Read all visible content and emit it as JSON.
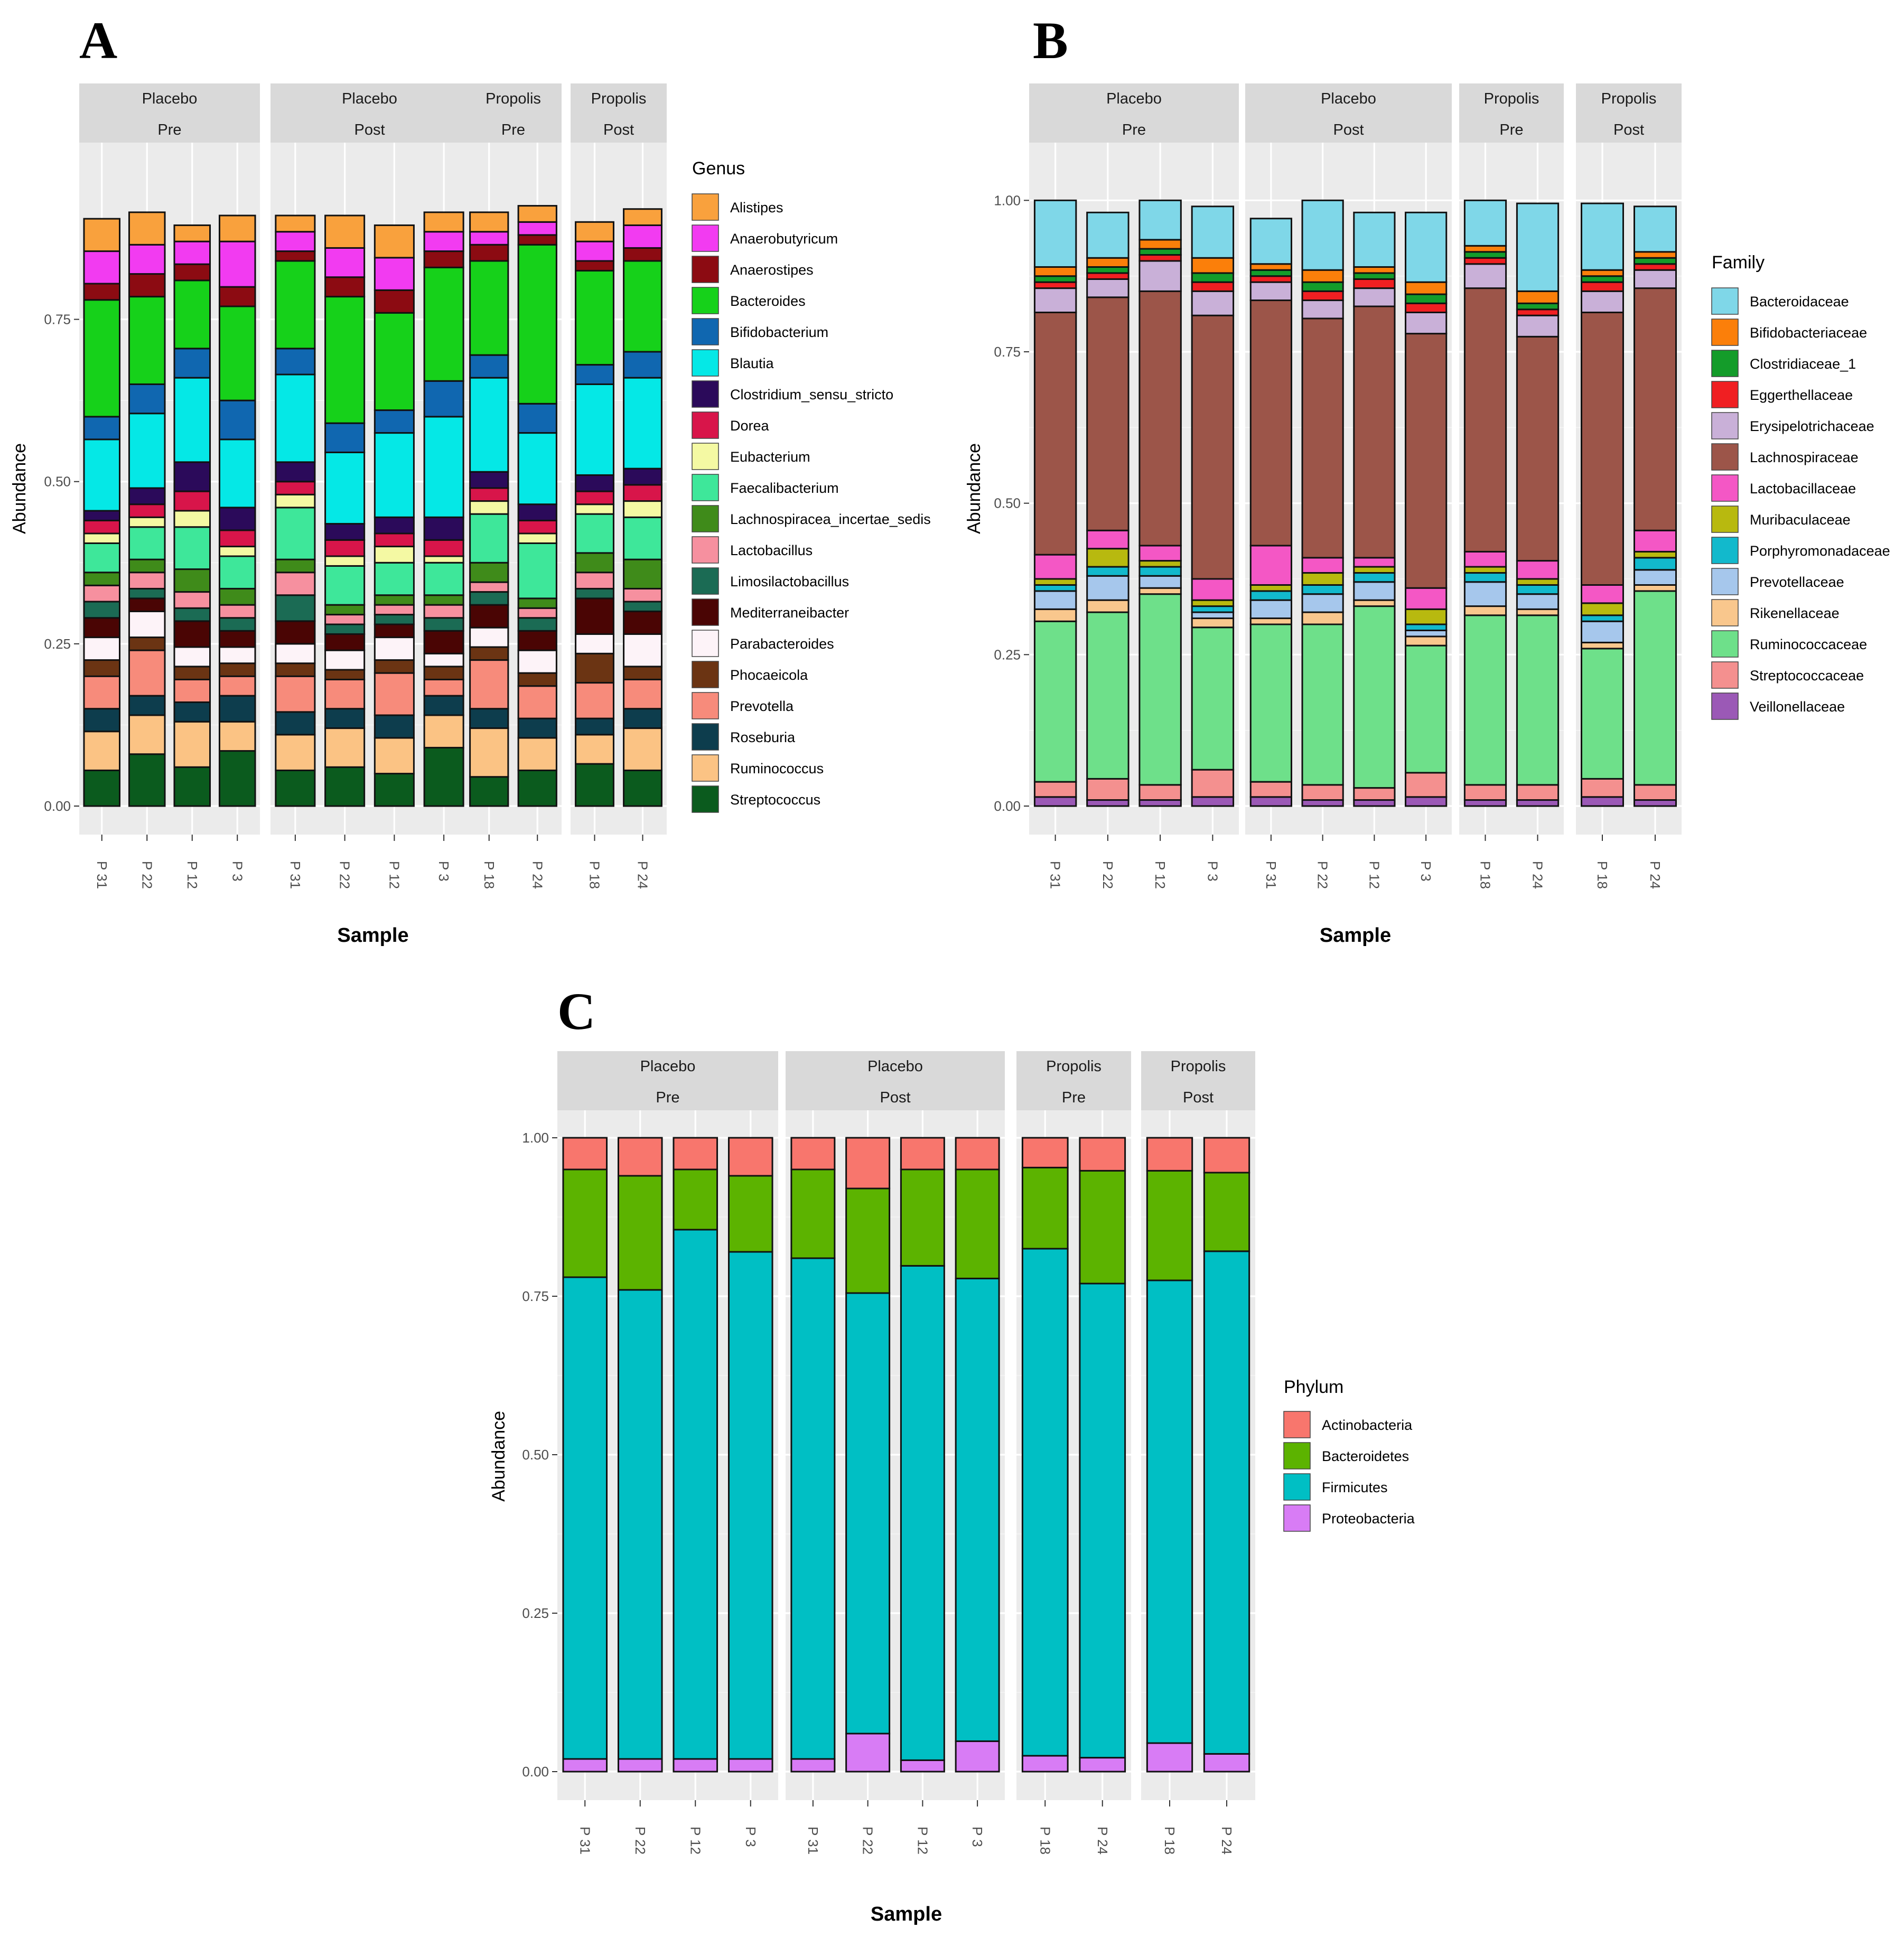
{
  "chart_data": [
    {
      "panel_label": "A",
      "type": "stacked-bar",
      "xlabel": "Sample",
      "ylabel": "Abundance",
      "ylim": [
        0,
        0.98
      ],
      "yticks": [
        "0.00",
        "0.25",
        "0.50",
        "0.75"
      ],
      "legend_title": "Genus",
      "facets": [
        {
          "line1": "Placebo",
          "line2": "Pre",
          "samples": [
            "P 31",
            "P 22",
            "P 12",
            "P 3"
          ]
        },
        {
          "line1": "Placebo",
          "line2": "Post",
          "samples": [
            "P 31",
            "P 22",
            "P 12",
            "P 3"
          ]
        },
        {
          "line1": "Propolis",
          "line2": "Pre",
          "samples": [
            "P 18",
            "P 24"
          ]
        },
        {
          "line1": "Propolis",
          "line2": "Post",
          "samples": [
            "P 18",
            "P 24"
          ]
        }
      ],
      "categories": [
        {
          "name": "Streptococcus",
          "color": "#0b5b1e"
        },
        {
          "name": "Ruminococcus",
          "color": "#fbc384"
        },
        {
          "name": "Roseburia",
          "color": "#0d3d4d"
        },
        {
          "name": "Prevotella",
          "color": "#f78b7b"
        },
        {
          "name": "Phocaeicola",
          "color": "#6b3413"
        },
        {
          "name": "Parabacteroides",
          "color": "#fdf3f8"
        },
        {
          "name": "Mediterraneibacter",
          "color": "#4a0504"
        },
        {
          "name": "Limosilactobacillus",
          "color": "#1b6b54"
        },
        {
          "name": "Lactobacillus",
          "color": "#f6909f"
        },
        {
          "name": "Lachnospiracea_incertae_sedis",
          "color": "#3f8b1a"
        },
        {
          "name": "Faecalibacterium",
          "color": "#3ee79a"
        },
        {
          "name": "Eubacterium",
          "color": "#f4f9a3"
        },
        {
          "name": "Dorea",
          "color": "#d8154a"
        },
        {
          "name": "Clostridium_sensu_stricto",
          "color": "#2b0a5a"
        },
        {
          "name": "Blautia",
          "color": "#05e8e6"
        },
        {
          "name": "Bifidobacterium",
          "color": "#1067b0"
        },
        {
          "name": "Bacteroides",
          "color": "#16d11a"
        },
        {
          "name": "Anaerostipes",
          "color": "#8c0b12"
        },
        {
          "name": "Anaerobutyricum",
          "color": "#f23bf1"
        },
        {
          "name": "Alistipes",
          "color": "#f9a13d"
        }
      ],
      "legend_order": [
        "Alistipes",
        "Anaerobutyricum",
        "Anaerostipes",
        "Bacteroides",
        "Bifidobacterium",
        "Blautia",
        "Clostridium_sensu_stricto",
        "Dorea",
        "Eubacterium",
        "Faecalibacterium",
        "Lachnospiracea_incertae_sedis",
        "Lactobacillus",
        "Limosilactobacillus",
        "Mediterraneibacter",
        "Parabacteroides",
        "Phocaeicola",
        "Prevotella",
        "Roseburia",
        "Ruminococcus",
        "Streptococcus"
      ],
      "values": [
        [
          0.055,
          0.06,
          0.035,
          0.05,
          0.025,
          0.035,
          0.03,
          0.025,
          0.025,
          0.02,
          0.045,
          0.015,
          0.02,
          0.015,
          0.11,
          0.035,
          0.18,
          0.025,
          0.05,
          0.05
        ],
        [
          0.08,
          0.06,
          0.03,
          0.07,
          0.02,
          0.04,
          0.02,
          0.015,
          0.025,
          0.02,
          0.05,
          0.015,
          0.02,
          0.025,
          0.115,
          0.045,
          0.135,
          0.035,
          0.045,
          0.05
        ],
        [
          0.06,
          0.07,
          0.03,
          0.035,
          0.02,
          0.03,
          0.04,
          0.02,
          0.025,
          0.035,
          0.065,
          0.025,
          0.03,
          0.045,
          0.13,
          0.045,
          0.105,
          0.025,
          0.035,
          0.025
        ],
        [
          0.085,
          0.045,
          0.04,
          0.03,
          0.02,
          0.025,
          0.025,
          0.02,
          0.02,
          0.025,
          0.05,
          0.015,
          0.025,
          0.035,
          0.105,
          0.06,
          0.145,
          0.03,
          0.07,
          0.04
        ],
        [
          0.055,
          0.055,
          0.035,
          0.055,
          0.02,
          0.03,
          0.035,
          0.04,
          0.035,
          0.02,
          0.08,
          0.02,
          0.02,
          0.03,
          0.135,
          0.04,
          0.135,
          0.015,
          0.03,
          0.025
        ],
        [
          0.06,
          0.06,
          0.03,
          0.045,
          0.015,
          0.03,
          0.025,
          0.015,
          0.015,
          0.015,
          0.06,
          0.015,
          0.025,
          0.025,
          0.11,
          0.045,
          0.195,
          0.03,
          0.045,
          0.05
        ],
        [
          0.05,
          0.055,
          0.035,
          0.065,
          0.02,
          0.035,
          0.02,
          0.015,
          0.015,
          0.015,
          0.05,
          0.025,
          0.02,
          0.025,
          0.13,
          0.035,
          0.15,
          0.035,
          0.05,
          0.05
        ],
        [
          0.09,
          0.05,
          0.03,
          0.025,
          0.02,
          0.02,
          0.035,
          0.02,
          0.02,
          0.015,
          0.05,
          0.01,
          0.025,
          0.035,
          0.155,
          0.055,
          0.175,
          0.025,
          0.03,
          0.03
        ],
        [
          0.045,
          0.075,
          0.03,
          0.075,
          0.02,
          0.03,
          0.035,
          0.02,
          0.015,
          0.03,
          0.075,
          0.02,
          0.02,
          0.025,
          0.145,
          0.035,
          0.145,
          0.025,
          0.02,
          0.03
        ],
        [
          0.055,
          0.05,
          0.03,
          0.05,
          0.02,
          0.035,
          0.03,
          0.02,
          0.015,
          0.015,
          0.085,
          0.015,
          0.02,
          0.025,
          0.11,
          0.045,
          0.245,
          0.015,
          0.02,
          0.025
        ],
        [
          0.065,
          0.045,
          0.025,
          0.055,
          0.045,
          0.03,
          0.055,
          0.015,
          0.025,
          0.03,
          0.06,
          0.015,
          0.02,
          0.025,
          0.14,
          0.03,
          0.145,
          0.015,
          0.03,
          0.03
        ],
        [
          0.055,
          0.065,
          0.03,
          0.045,
          0.02,
          0.05,
          0.035,
          0.015,
          0.02,
          0.045,
          0.065,
          0.025,
          0.025,
          0.025,
          0.14,
          0.04,
          0.14,
          0.02,
          0.035,
          0.025
        ]
      ]
    },
    {
      "panel_label": "B",
      "type": "stacked-bar",
      "xlabel": "Sample",
      "ylabel": "Abundance",
      "ylim": [
        0,
        1.05
      ],
      "yticks": [
        "0.00",
        "0.25",
        "0.50",
        "0.75",
        "1.00"
      ],
      "legend_title": "Family",
      "facets": [
        {
          "line1": "Placebo",
          "line2": "Pre",
          "samples": [
            "P 31",
            "P 22",
            "P 12",
            "P 3"
          ]
        },
        {
          "line1": "Placebo",
          "line2": "Post",
          "samples": [
            "P 31",
            "P 22",
            "P 12",
            "P 3"
          ]
        },
        {
          "line1": "Propolis",
          "line2": "Pre",
          "samples": [
            "P 18",
            "P 24"
          ]
        },
        {
          "line1": "Propolis",
          "line2": "Post",
          "samples": [
            "P 18",
            "P 24"
          ]
        }
      ],
      "categories": [
        {
          "name": "Veillonellaceae",
          "color": "#9b59b6"
        },
        {
          "name": "Streptococcaceae",
          "color": "#f4908f"
        },
        {
          "name": "Ruminococcaceae",
          "color": "#6ee08a"
        },
        {
          "name": "Rikenellaceae",
          "color": "#f9c78d"
        },
        {
          "name": "Prevotellaceae",
          "color": "#a6c7ec"
        },
        {
          "name": "Porphyromonadaceae",
          "color": "#12b9cc"
        },
        {
          "name": "Muribaculaceae",
          "color": "#b8b90f"
        },
        {
          "name": "Lactobacillaceae",
          "color": "#f457c5"
        },
        {
          "name": "Lachnospiraceae",
          "color": "#9c5549"
        },
        {
          "name": "Erysipelotrichaceae",
          "color": "#c9b0d8"
        },
        {
          "name": "Eggerthellaceae",
          "color": "#f01f22"
        },
        {
          "name": "Clostridiaceae_1",
          "color": "#149c2a"
        },
        {
          "name": "Bifidobacteriaceae",
          "color": "#fb7f0a"
        },
        {
          "name": "Bacteroidaceae",
          "color": "#7fd7e8"
        }
      ],
      "legend_order": [
        "Bacteroidaceae",
        "Bifidobacteriaceae",
        "Clostridiaceae_1",
        "Eggerthellaceae",
        "Erysipelotrichaceae",
        "Lachnospiraceae",
        "Lactobacillaceae",
        "Muribaculaceae",
        "Porphyromonadaceae",
        "Prevotellaceae",
        "Rikenellaceae",
        "Ruminococcaceae",
        "Streptococcaceae",
        "Veillonellaceae"
      ],
      "values": [
        [
          0.015,
          0.025,
          0.265,
          0.02,
          0.03,
          0.01,
          0.01,
          0.04,
          0.4,
          0.04,
          0.01,
          0.01,
          0.015,
          0.11
        ],
        [
          0.01,
          0.035,
          0.275,
          0.02,
          0.04,
          0.015,
          0.03,
          0.03,
          0.385,
          0.03,
          0.01,
          0.01,
          0.015,
          0.075
        ],
        [
          0.01,
          0.025,
          0.315,
          0.01,
          0.02,
          0.015,
          0.01,
          0.025,
          0.42,
          0.05,
          0.01,
          0.01,
          0.015,
          0.065
        ],
        [
          0.015,
          0.045,
          0.235,
          0.015,
          0.01,
          0.01,
          0.01,
          0.035,
          0.435,
          0.04,
          0.015,
          0.015,
          0.025,
          0.085
        ],
        [
          0.015,
          0.025,
          0.26,
          0.01,
          0.03,
          0.015,
          0.01,
          0.065,
          0.405,
          0.03,
          0.01,
          0.01,
          0.01,
          0.075
        ],
        [
          0.01,
          0.025,
          0.265,
          0.02,
          0.03,
          0.015,
          0.02,
          0.025,
          0.395,
          0.03,
          0.015,
          0.015,
          0.02,
          0.115
        ],
        [
          0.01,
          0.02,
          0.3,
          0.01,
          0.03,
          0.015,
          0.01,
          0.015,
          0.415,
          0.03,
          0.015,
          0.01,
          0.01,
          0.09
        ],
        [
          0.015,
          0.04,
          0.21,
          0.015,
          0.01,
          0.01,
          0.025,
          0.035,
          0.42,
          0.035,
          0.015,
          0.015,
          0.02,
          0.115
        ],
        [
          0.01,
          0.025,
          0.28,
          0.015,
          0.04,
          0.015,
          0.01,
          0.025,
          0.435,
          0.04,
          0.01,
          0.01,
          0.01,
          0.075
        ],
        [
          0.01,
          0.025,
          0.28,
          0.01,
          0.025,
          0.015,
          0.01,
          0.03,
          0.37,
          0.035,
          0.01,
          0.01,
          0.02,
          0.145
        ],
        [
          0.015,
          0.03,
          0.215,
          0.01,
          0.035,
          0.01,
          0.02,
          0.03,
          0.45,
          0.035,
          0.015,
          0.01,
          0.01,
          0.11
        ],
        [
          0.01,
          0.025,
          0.32,
          0.01,
          0.025,
          0.02,
          0.01,
          0.035,
          0.4,
          0.03,
          0.01,
          0.01,
          0.01,
          0.075
        ]
      ]
    },
    {
      "panel_label": "C",
      "type": "stacked-bar",
      "xlabel": "Sample",
      "ylabel": "Abundance",
      "ylim": [
        0,
        1.0
      ],
      "yticks": [
        "0.00",
        "0.25",
        "0.50",
        "0.75",
        "1.00"
      ],
      "legend_title": "Phylum",
      "facets": [
        {
          "line1": "Placebo",
          "line2": "Pre",
          "samples": [
            "P 31",
            "P 22",
            "P 12",
            "P 3"
          ]
        },
        {
          "line1": "Placebo",
          "line2": "Post",
          "samples": [
            "P 31",
            "P 22",
            "P 12",
            "P 3"
          ]
        },
        {
          "line1": "Propolis",
          "line2": "Pre",
          "samples": [
            "P 18",
            "P 24"
          ]
        },
        {
          "line1": "Propolis",
          "line2": "Post",
          "samples": [
            "P 18",
            "P 24"
          ]
        }
      ],
      "categories": [
        {
          "name": "Proteobacteria",
          "color": "#d87cf5"
        },
        {
          "name": "Firmicutes",
          "color": "#00bfc4"
        },
        {
          "name": "Bacteroidetes",
          "color": "#5cb300"
        },
        {
          "name": "Actinobacteria",
          "color": "#f8766d"
        }
      ],
      "legend_order": [
        "Actinobacteria",
        "Bacteroidetes",
        "Firmicutes",
        "Proteobacteria"
      ],
      "values": [
        [
          0.02,
          0.76,
          0.17,
          0.05
        ],
        [
          0.02,
          0.74,
          0.18,
          0.06
        ],
        [
          0.02,
          0.835,
          0.095,
          0.05
        ],
        [
          0.02,
          0.8,
          0.12,
          0.06
        ],
        [
          0.02,
          0.79,
          0.14,
          0.05
        ],
        [
          0.06,
          0.695,
          0.165,
          0.08
        ],
        [
          0.018,
          0.78,
          0.152,
          0.05
        ],
        [
          0.048,
          0.73,
          0.172,
          0.05
        ],
        [
          0.025,
          0.8,
          0.128,
          0.047
        ],
        [
          0.022,
          0.748,
          0.178,
          0.052
        ],
        [
          0.045,
          0.73,
          0.173,
          0.052
        ],
        [
          0.028,
          0.793,
          0.124,
          0.055
        ]
      ]
    }
  ]
}
